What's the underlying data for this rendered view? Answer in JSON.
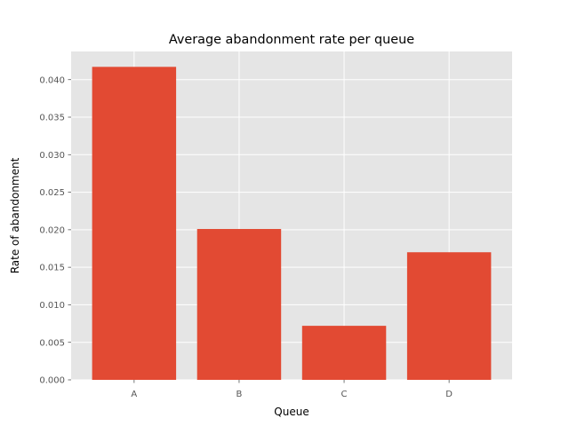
{
  "chart_data": {
    "type": "bar",
    "title": "Average abandonment rate per queue",
    "xlabel": "Queue",
    "ylabel": "Rate of abandonment",
    "categories": [
      "A",
      "B",
      "C",
      "D"
    ],
    "values": [
      0.0417,
      0.0201,
      0.0072,
      0.017
    ],
    "ylim": [
      0,
      0.04375
    ],
    "yticks": [
      "0.000",
      "0.005",
      "0.010",
      "0.015",
      "0.020",
      "0.025",
      "0.030",
      "0.035",
      "0.040"
    ],
    "ytick_values": [
      0,
      0.005,
      0.01,
      0.015,
      0.02,
      0.025,
      0.03,
      0.035,
      0.04
    ],
    "grid": true,
    "bar_color": "#E24A33",
    "background_color": "#E5E5E5",
    "grid_color": "#FFFFFF"
  }
}
